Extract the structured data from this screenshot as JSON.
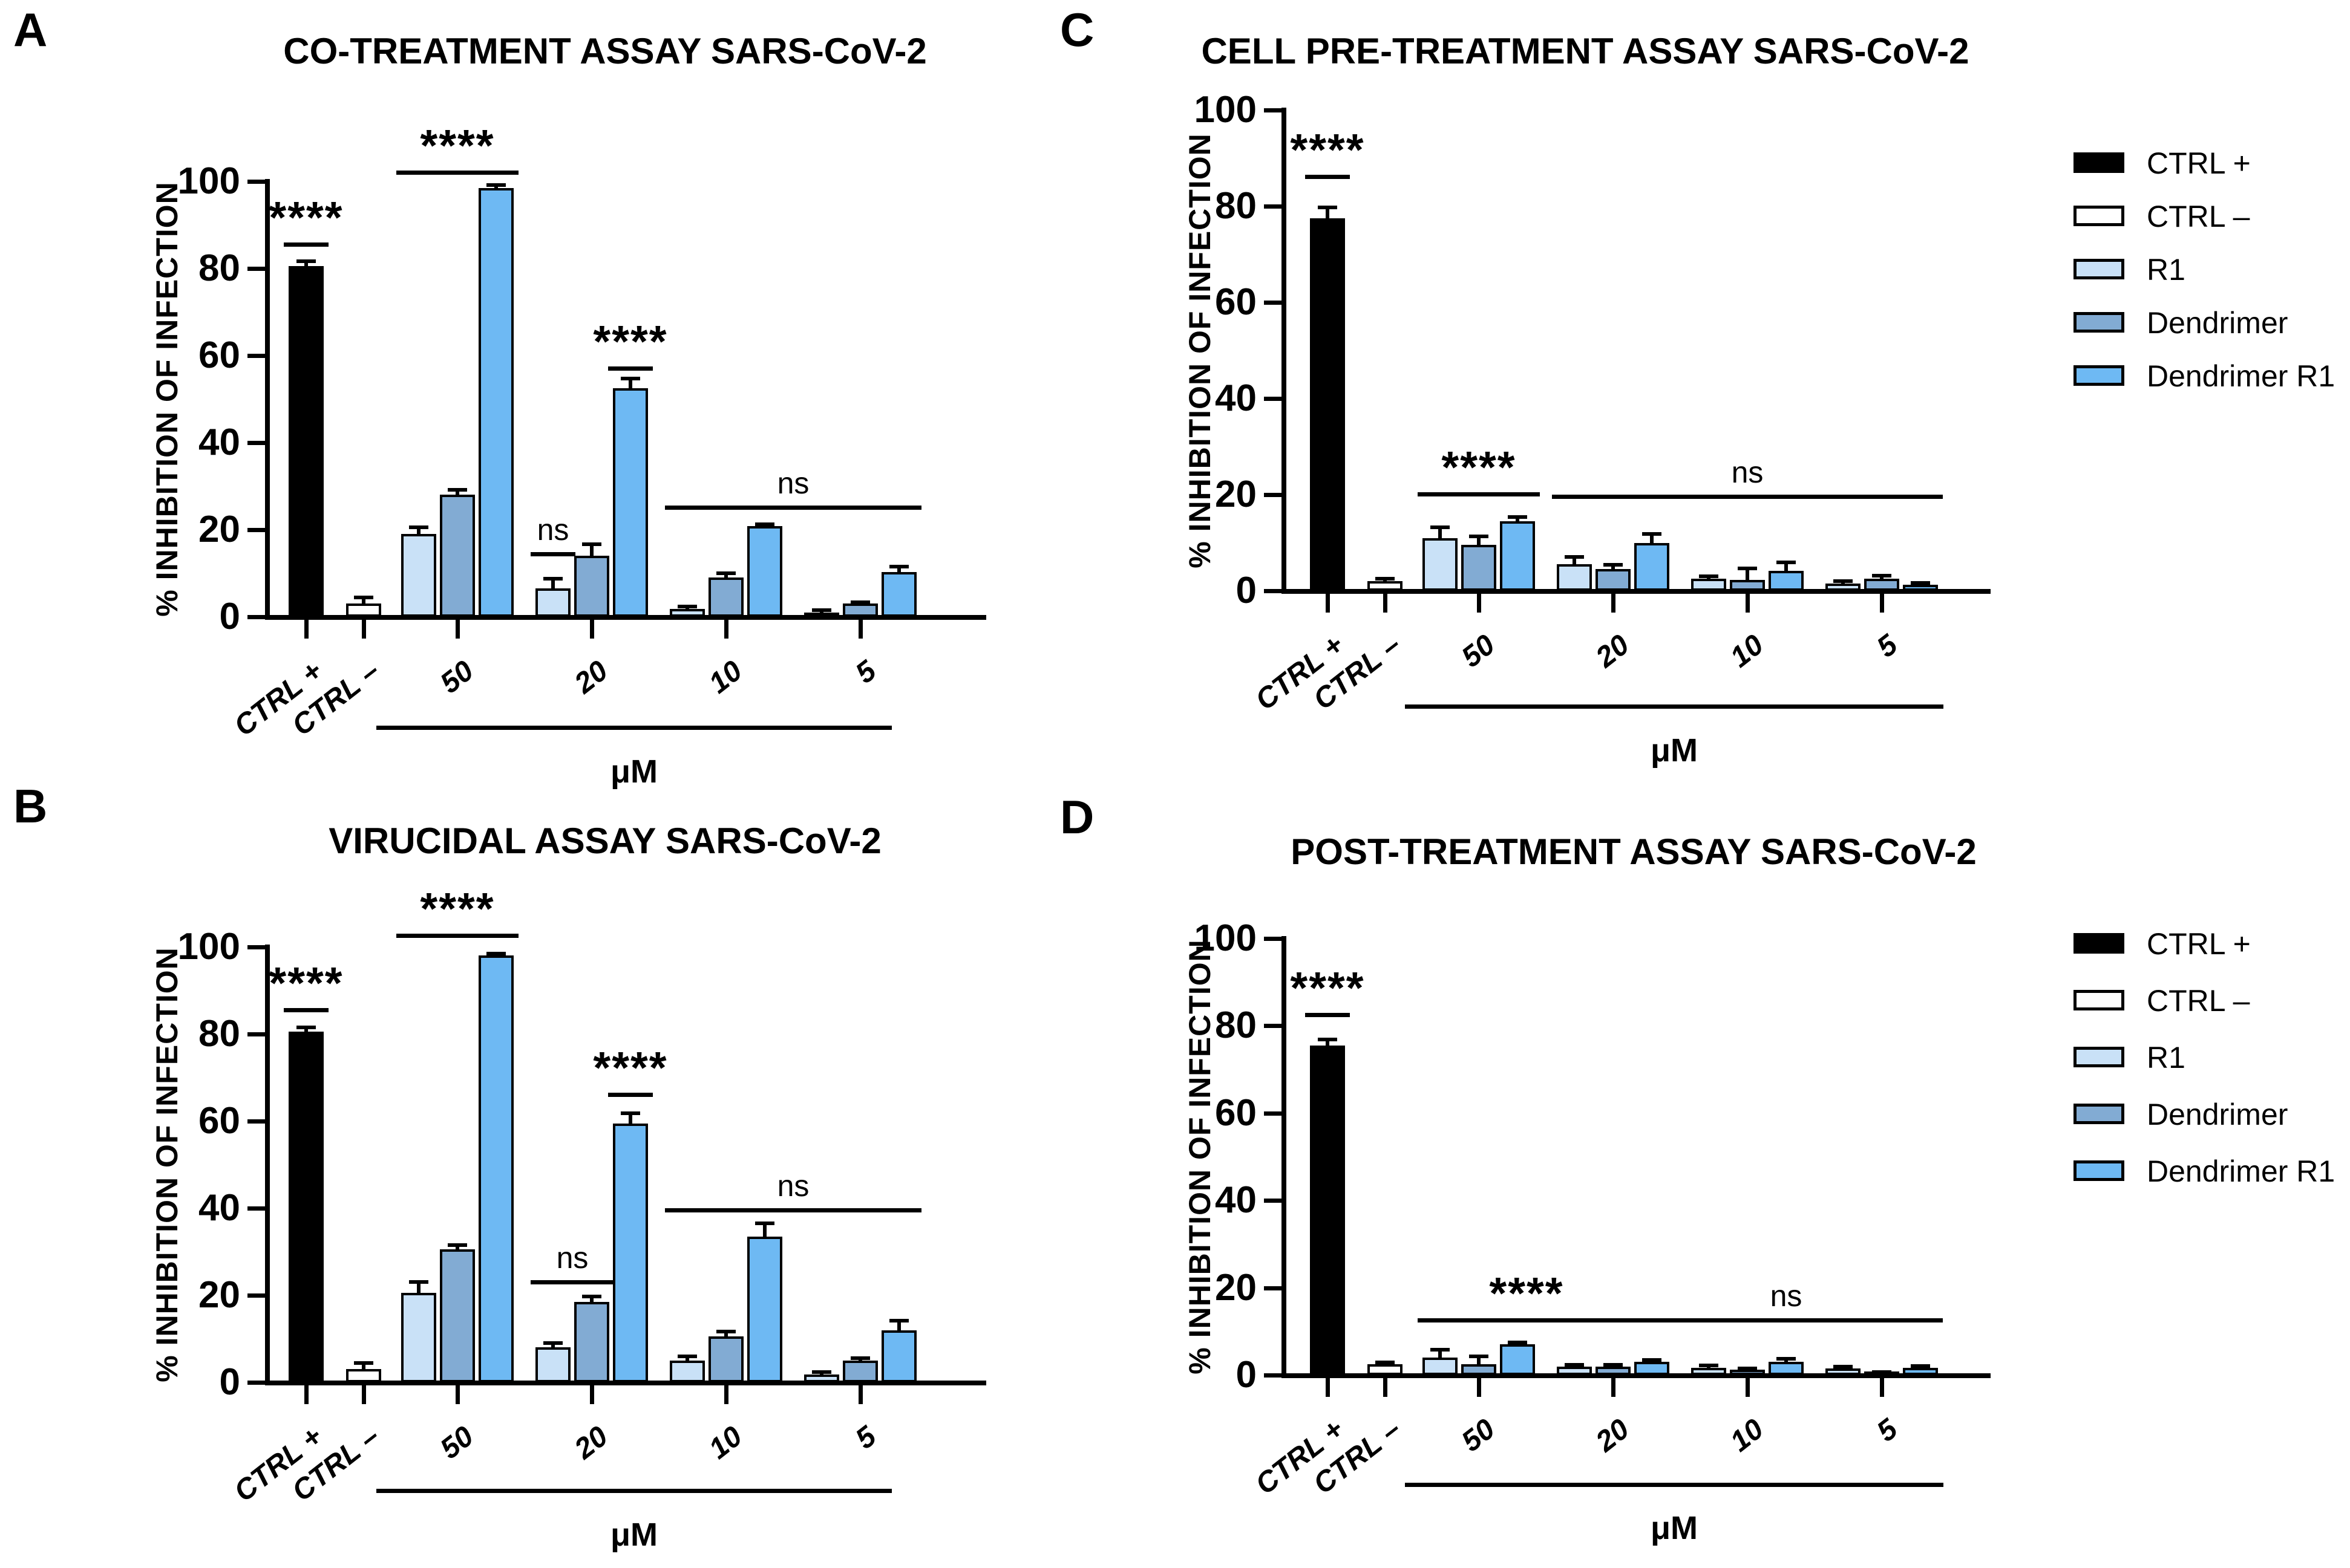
{
  "chart_data": [
    {
      "panel": "A",
      "type": "bar",
      "title": "CO-TREATMENT ASSAY SARS-CoV-2",
      "ylabel": "% INHIBITION OF INFECTION",
      "xlabel": "μM",
      "ylim": [
        0,
        100
      ],
      "yticks": [
        0,
        20,
        40,
        60,
        80,
        100
      ],
      "categories": [
        "CTRL +",
        "CTRL –",
        "50",
        "20",
        "10",
        "5"
      ],
      "legend_position": "none",
      "grid": false,
      "bars": [
        {
          "category": "CTRL +",
          "series": "CTRL +",
          "value": 80.5,
          "err": 1.2
        },
        {
          "category": "CTRL –",
          "series": "CTRL –",
          "value": 3.0,
          "err": 1.5
        },
        {
          "category": "50",
          "series": "R1",
          "value": 19.0,
          "err": 1.5
        },
        {
          "category": "50",
          "series": "Dendrimer",
          "value": 28.0,
          "err": 1.2
        },
        {
          "category": "50",
          "series": "Dendrimer R1",
          "value": 98.5,
          "err": 0.6
        },
        {
          "category": "20",
          "series": "R1",
          "value": 6.5,
          "err": 2.2
        },
        {
          "category": "20",
          "series": "Dendrimer",
          "value": 14.0,
          "err": 2.6
        },
        {
          "category": "20",
          "series": "Dendrimer R1",
          "value": 52.5,
          "err": 2.2
        },
        {
          "category": "10",
          "series": "R1",
          "value": 1.8,
          "err": 0.6
        },
        {
          "category": "10",
          "series": "Dendrimer",
          "value": 9.0,
          "err": 1.0
        },
        {
          "category": "10",
          "series": "Dendrimer R1",
          "value": 20.8,
          "err": 0.5
        },
        {
          "category": "5",
          "series": "R1",
          "value": 1.0,
          "err": 0.5
        },
        {
          "category": "5",
          "series": "Dendrimer",
          "value": 3.0,
          "err": 0.4
        },
        {
          "category": "5",
          "series": "Dendrimer R1",
          "value": 10.3,
          "err": 1.2
        }
      ],
      "significance": [
        {
          "label": "****",
          "from_bar": 0,
          "to_bar": 0,
          "y": 86
        },
        {
          "label": "****",
          "from_bar": 2,
          "to_bar": 4,
          "y": 102.5
        },
        {
          "label": "ns",
          "from_bar": 5,
          "to_bar": 5,
          "y": 14.8
        },
        {
          "label": "****",
          "from_bar": 7,
          "to_bar": 7,
          "y": 57.5
        },
        {
          "label": "ns",
          "from_bar": 8,
          "to_bar": 13,
          "y": 25.5
        }
      ]
    },
    {
      "panel": "B",
      "type": "bar",
      "title": "VIRUCIDAL ASSAY SARS-CoV-2",
      "ylabel": "% INHIBITION OF INFECTION",
      "xlabel": "μM",
      "ylim": [
        0,
        100
      ],
      "yticks": [
        0,
        20,
        40,
        60,
        80,
        100
      ],
      "categories": [
        "CTRL +",
        "CTRL –",
        "50",
        "20",
        "10",
        "5"
      ],
      "legend_position": "none",
      "grid": false,
      "bars": [
        {
          "category": "CTRL +",
          "series": "CTRL +",
          "value": 80.5,
          "err": 1.0
        },
        {
          "category": "CTRL –",
          "series": "CTRL –",
          "value": 3.0,
          "err": 1.5
        },
        {
          "category": "50",
          "series": "R1",
          "value": 20.5,
          "err": 2.5
        },
        {
          "category": "50",
          "series": "Dendrimer",
          "value": 30.5,
          "err": 1.0
        },
        {
          "category": "50",
          "series": "Dendrimer R1",
          "value": 98.0,
          "err": 0.5
        },
        {
          "category": "20",
          "series": "R1",
          "value": 8.0,
          "err": 1.0
        },
        {
          "category": "20",
          "series": "Dendrimer",
          "value": 18.5,
          "err": 1.2
        },
        {
          "category": "20",
          "series": "Dendrimer R1",
          "value": 59.5,
          "err": 2.3
        },
        {
          "category": "10",
          "series": "R1",
          "value": 5.0,
          "err": 1.0
        },
        {
          "category": "10",
          "series": "Dendrimer",
          "value": 10.5,
          "err": 1.2
        },
        {
          "category": "10",
          "series": "Dendrimer R1",
          "value": 33.5,
          "err": 3.0
        },
        {
          "category": "5",
          "series": "R1",
          "value": 1.8,
          "err": 0.6
        },
        {
          "category": "5",
          "series": "Dendrimer",
          "value": 5.0,
          "err": 0.5
        },
        {
          "category": "5",
          "series": "Dendrimer R1",
          "value": 12.0,
          "err": 2.2
        }
      ],
      "significance": [
        {
          "label": "****",
          "from_bar": 0,
          "to_bar": 0,
          "y": 86
        },
        {
          "label": "****",
          "from_bar": 2,
          "to_bar": 4,
          "y": 103
        },
        {
          "label": "ns",
          "from_bar": 5,
          "to_bar": 6,
          "y": 23.5
        },
        {
          "label": "****",
          "from_bar": 7,
          "to_bar": 7,
          "y": 66.5
        },
        {
          "label": "ns",
          "from_bar": 8,
          "to_bar": 13,
          "y": 40
        }
      ]
    },
    {
      "panel": "C",
      "type": "bar",
      "title": "CELL PRE-TREATMENT ASSAY SARS-CoV-2",
      "ylabel": "% INHIBITION OF INFECTION",
      "xlabel": "μM",
      "ylim": [
        0,
        100
      ],
      "yticks": [
        0,
        20,
        40,
        60,
        80,
        100
      ],
      "categories": [
        "CTRL +",
        "CTRL –",
        "50",
        "20",
        "10",
        "5"
      ],
      "legend_position": "right",
      "grid": false,
      "bars": [
        {
          "category": "CTRL +",
          "series": "CTRL +",
          "value": 77.5,
          "err": 2.2
        },
        {
          "category": "CTRL –",
          "series": "CTRL –",
          "value": 2.0,
          "err": 0.5
        },
        {
          "category": "50",
          "series": "R1",
          "value": 11.0,
          "err": 2.2
        },
        {
          "category": "50",
          "series": "Dendrimer",
          "value": 9.5,
          "err": 1.8
        },
        {
          "category": "50",
          "series": "Dendrimer R1",
          "value": 14.5,
          "err": 0.8
        },
        {
          "category": "20",
          "series": "R1",
          "value": 5.5,
          "err": 1.6
        },
        {
          "category": "20",
          "series": "Dendrimer",
          "value": 4.5,
          "err": 0.9
        },
        {
          "category": "20",
          "series": "Dendrimer R1",
          "value": 10.0,
          "err": 1.8
        },
        {
          "category": "10",
          "series": "R1",
          "value": 2.5,
          "err": 0.5
        },
        {
          "category": "10",
          "series": "Dendrimer",
          "value": 2.3,
          "err": 2.3
        },
        {
          "category": "10",
          "series": "Dendrimer R1",
          "value": 4.2,
          "err": 1.7
        },
        {
          "category": "5",
          "series": "R1",
          "value": 1.5,
          "err": 0.5
        },
        {
          "category": "5",
          "series": "Dendrimer",
          "value": 2.5,
          "err": 0.7
        },
        {
          "category": "5",
          "series": "Dendrimer R1",
          "value": 1.2,
          "err": 0.4
        }
      ],
      "significance": [
        {
          "label": "****",
          "from_bar": 0,
          "to_bar": 0,
          "y": 86.5
        },
        {
          "label": "****",
          "from_bar": 2,
          "to_bar": 4,
          "y": 20.5
        },
        {
          "label": "ns",
          "from_bar": 5,
          "to_bar": 13,
          "y": 20
        }
      ]
    },
    {
      "panel": "D",
      "type": "bar",
      "title": "POST-TREATMENT ASSAY SARS-CoV-2",
      "ylabel": "% INHIBITION OF INFECTION",
      "xlabel": "μM",
      "ylim": [
        0,
        100
      ],
      "yticks": [
        0,
        20,
        40,
        60,
        80,
        100
      ],
      "categories": [
        "CTRL +",
        "CTRL –",
        "50",
        "20",
        "10",
        "5"
      ],
      "legend_position": "right",
      "grid": false,
      "bars": [
        {
          "category": "CTRL +",
          "series": "CTRL +",
          "value": 75.5,
          "err": 1.4
        },
        {
          "category": "CTRL –",
          "series": "CTRL –",
          "value": 2.5,
          "err": 0.4
        },
        {
          "category": "50",
          "series": "R1",
          "value": 4.0,
          "err": 1.8
        },
        {
          "category": "50",
          "series": "Dendrimer",
          "value": 2.5,
          "err": 1.8
        },
        {
          "category": "50",
          "series": "Dendrimer R1",
          "value": 7.0,
          "err": 0.5
        },
        {
          "category": "20",
          "series": "R1",
          "value": 2.0,
          "err": 0.4
        },
        {
          "category": "20",
          "series": "Dendrimer",
          "value": 2.0,
          "err": 0.4
        },
        {
          "category": "20",
          "series": "Dendrimer R1",
          "value": 3.0,
          "err": 0.5
        },
        {
          "category": "10",
          "series": "R1",
          "value": 1.7,
          "err": 0.5
        },
        {
          "category": "10",
          "series": "Dendrimer",
          "value": 1.2,
          "err": 0.3
        },
        {
          "category": "10",
          "series": "Dendrimer R1",
          "value": 3.0,
          "err": 0.7
        },
        {
          "category": "5",
          "series": "R1",
          "value": 1.5,
          "err": 0.4
        },
        {
          "category": "5",
          "series": "Dendrimer",
          "value": 0.4,
          "err": 0.3
        },
        {
          "category": "5",
          "series": "Dendrimer R1",
          "value": 1.6,
          "err": 0.5
        }
      ],
      "significance": [
        {
          "label": "****",
          "from_bar": 0,
          "to_bar": 0,
          "y": 83
        },
        {
          "label": "****",
          "from_bar": 2,
          "to_bar": 6,
          "y": 13
        },
        {
          "label": "ns",
          "from_bar": 7,
          "to_bar": 13,
          "y": 13
        }
      ]
    }
  ],
  "legend": {
    "entries": [
      {
        "label": "CTRL +",
        "color": "#000000"
      },
      {
        "label": "CTRL –",
        "color": "#ffffff"
      },
      {
        "label": "R1",
        "color": "#c9e1f7"
      },
      {
        "label": "Dendrimer",
        "color": "#82abd3"
      },
      {
        "label": "Dendrimer R1",
        "color": "#6eb9f3"
      }
    ]
  },
  "colors": {
    "background": "#ffffff",
    "axis": "#000000",
    "bar_border": "#000000",
    "ctrl_plus": "#000000",
    "ctrl_minus": "#ffffff",
    "r1": "#c9e1f7",
    "dendrimer": "#82abd3",
    "dendrimer_r1": "#6eb9f3"
  }
}
